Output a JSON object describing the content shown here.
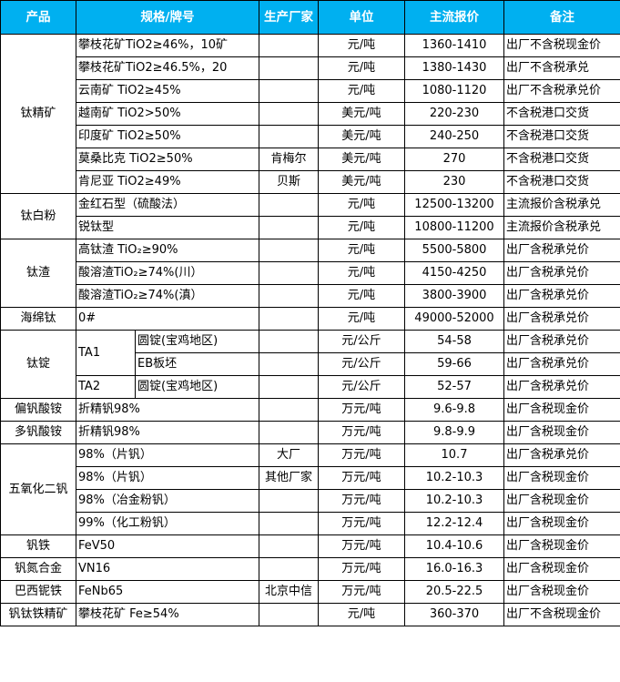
{
  "header": {
    "product": "产品",
    "spec": "规格/牌号",
    "maker": "生产厂家",
    "unit": "单位",
    "price": "主流报价",
    "note": "备注"
  },
  "colors": {
    "header_bg": "#00b0f0",
    "header_text": "#ffffff",
    "border": "#000000"
  },
  "groups": [
    {
      "product": "钛精矿",
      "rows": [
        {
          "spec": "攀枝花矿TiO2≥46%，10矿",
          "maker": "",
          "unit": "元/吨",
          "price": "1360-1410",
          "note": "出厂不含税现金价"
        },
        {
          "spec": "攀枝花矿TiO2≥46.5%，20",
          "maker": "",
          "unit": "元/吨",
          "price": "1380-1430",
          "note": "出厂不含税承兑"
        },
        {
          "spec": "云南矿 TiO2≥45%",
          "maker": "",
          "unit": "元/吨",
          "price": "1080-1120",
          "note": "出厂不含税承兑价"
        },
        {
          "spec": "越南矿 TiO2>50%",
          "maker": "",
          "unit": "美元/吨",
          "price": "220-230",
          "note": "不含税港口交货"
        },
        {
          "spec": "印度矿 TiO2≥50%",
          "maker": "",
          "unit": "美元/吨",
          "price": "240-250",
          "note": "不含税港口交货"
        },
        {
          "spec": "莫桑比克 TiO2≥50%",
          "maker": "肯梅尔",
          "unit": "美元/吨",
          "price": "270",
          "note": "不含税港口交货"
        },
        {
          "spec": "肯尼亚 TiO2≥49%",
          "maker": "贝斯",
          "unit": "美元/吨",
          "price": "230",
          "note": "不含税港口交货"
        }
      ]
    },
    {
      "product": "钛白粉",
      "rows": [
        {
          "spec": "金红石型（硫酸法）",
          "maker": "",
          "unit": "元/吨",
          "price": "12500-13200",
          "note": "主流报价含税承兑"
        },
        {
          "spec": "锐钛型",
          "maker": "",
          "unit": "元/吨",
          "price": "10800-11200",
          "note": "主流报价含税承兑"
        }
      ]
    },
    {
      "product": "钛渣",
      "rows": [
        {
          "spec": "高钛渣 TiO₂≥90%",
          "maker": "",
          "unit": "元/吨",
          "price": "5500-5800",
          "note": "出厂含税承兑价"
        },
        {
          "spec": "酸溶渣TiO₂≥74%(川）",
          "maker": "",
          "unit": "元/吨",
          "price": "4150-4250",
          "note": "出厂含税承兑价"
        },
        {
          "spec": "酸溶渣TiO₂≥74%(滇）",
          "maker": "",
          "unit": "元/吨",
          "price": "3800-3900",
          "note": "出厂含税承兑价"
        }
      ]
    },
    {
      "product": "海绵钛",
      "rows": [
        {
          "spec": "0#",
          "maker": "",
          "unit": "元/吨",
          "price": "49000-52000",
          "note": "出厂含税承兑价"
        }
      ]
    },
    {
      "product": "钛锭",
      "rows": [
        {
          "grade": "TA1",
          "grade_span": 2,
          "sub": "圆锭(宝鸡地区)",
          "unit": "元/公斤",
          "price": "54-58",
          "note": "出厂含税承兑价"
        },
        {
          "sub": "EB板坯",
          "unit": "元/公斤",
          "price": "59-66",
          "note": "出厂含税承兑价"
        },
        {
          "grade": "TA2",
          "grade_span": 1,
          "sub": "圆锭(宝鸡地区)",
          "unit": "元/公斤",
          "price": "52-57",
          "note": "出厂含税承兑价"
        }
      ]
    },
    {
      "product": "偏钒酸铵",
      "rows": [
        {
          "spec": "折精钒98%",
          "maker": "",
          "unit": "万元/吨",
          "price": "9.6-9.8",
          "note": "出厂含税现金价"
        }
      ]
    },
    {
      "product": "多钒酸铵",
      "rows": [
        {
          "spec": "折精钒98%",
          "maker": "",
          "unit": "万元/吨",
          "price": "9.8-9.9",
          "note": "出厂含税现金价"
        }
      ]
    },
    {
      "product": "五氧化二钒",
      "rows": [
        {
          "spec": "98%（片钒）",
          "maker": "大厂",
          "unit": "万元/吨",
          "price": "10.7",
          "note": "出厂含税承兑价"
        },
        {
          "spec": "98%（片钒）",
          "maker": "其他厂家",
          "unit": "万元/吨",
          "price": "10.2-10.3",
          "note": "出厂含税现金价"
        },
        {
          "spec": "98%（冶金粉钒）",
          "maker": "",
          "unit": "万元/吨",
          "price": "10.2-10.3",
          "note": "出厂含税现金价"
        },
        {
          "spec": "99%（化工粉钒）",
          "maker": "",
          "unit": "万元/吨",
          "price": "12.2-12.4",
          "note": "出厂含税现金价"
        }
      ]
    },
    {
      "product": "钒铁",
      "rows": [
        {
          "spec": "FeV50",
          "maker": "",
          "unit": "万元/吨",
          "price": "10.4-10.6",
          "note": "出厂含税现金价"
        }
      ]
    },
    {
      "product": "钒氮合金",
      "rows": [
        {
          "spec": "VN16",
          "maker": "",
          "unit": "万元/吨",
          "price": "16.0-16.3",
          "note": "出厂含税现金价"
        }
      ]
    },
    {
      "product": "巴西铌铁",
      "rows": [
        {
          "spec": "FeNb65",
          "maker": "北京中信",
          "unit": "万元/吨",
          "price": "20.5-22.5",
          "note": "出厂含税现金价"
        }
      ]
    },
    {
      "product": "钒钛铁精矿",
      "rows": [
        {
          "spec": "攀枝花矿 Fe≥54%",
          "maker": "",
          "unit": "元/吨",
          "price": "360-370",
          "note": "出厂不含税现金价"
        }
      ]
    }
  ]
}
